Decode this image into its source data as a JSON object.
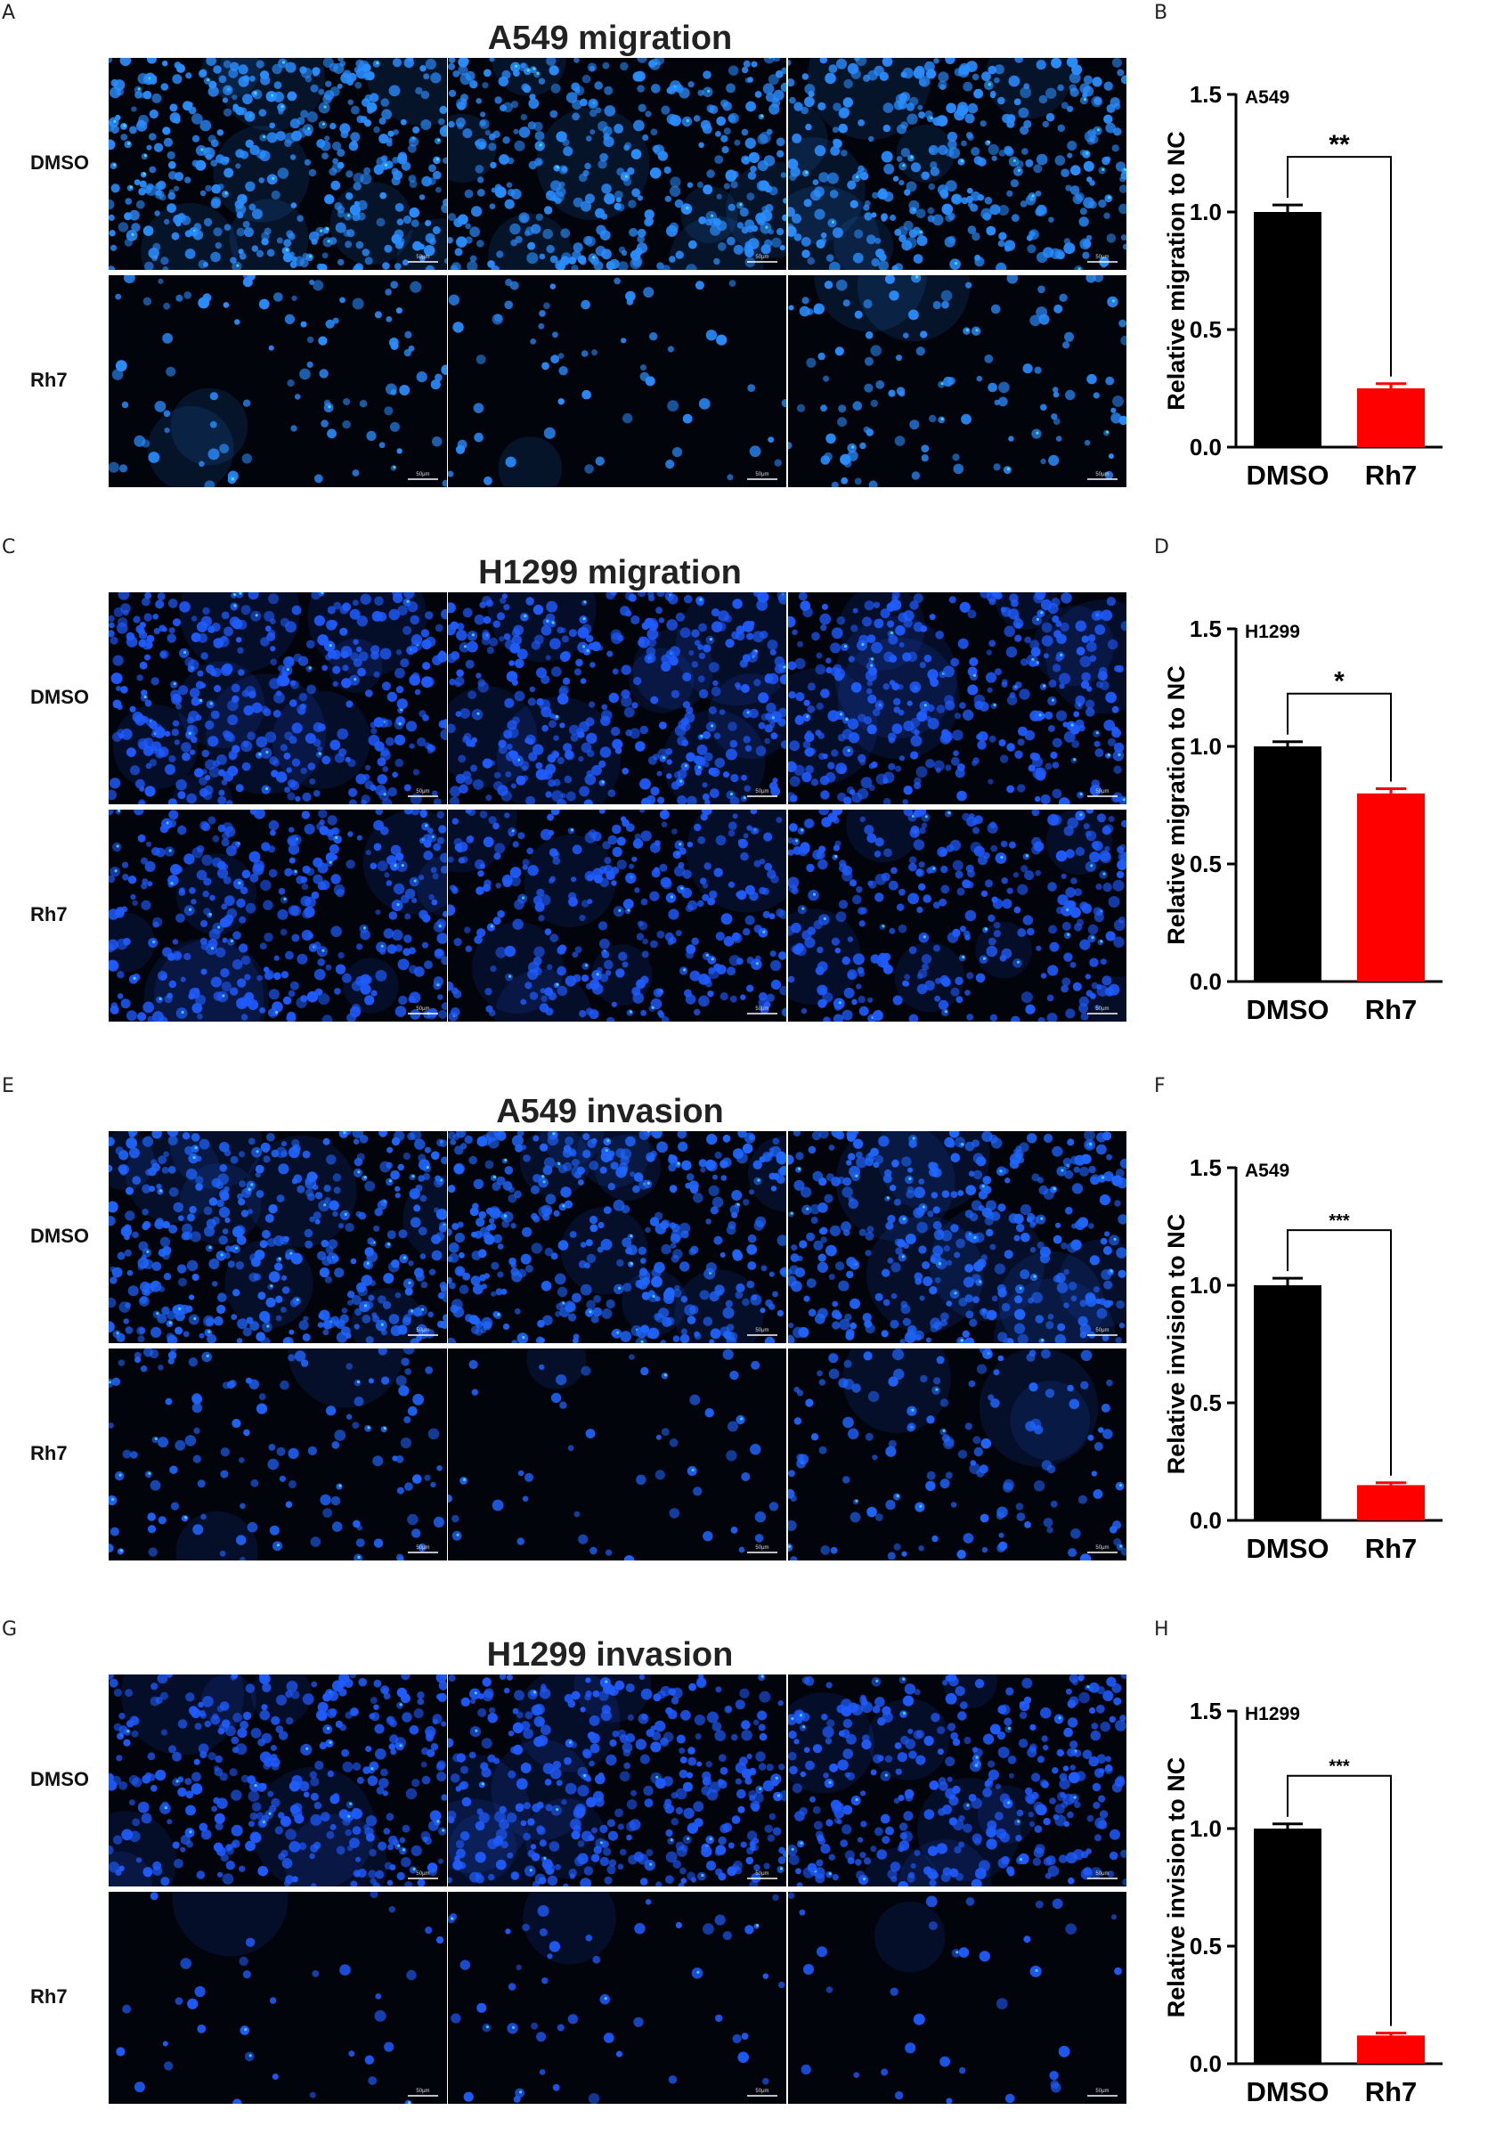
{
  "panels": [
    {
      "letter_left": "A",
      "title": "A549 migration",
      "rows": [
        "DMSO",
        "Rh7"
      ],
      "scale_bar_label": "50μm",
      "image_density": [
        [
          1.0,
          0.9,
          0.85
        ],
        [
          0.22,
          0.14,
          0.28
        ]
      ],
      "image_tone": "#2a8dff",
      "letter_right": "B",
      "chart": {
        "cell_line": "A549",
        "ylabel": "Relative migration to  NC",
        "significance": "**"
      }
    },
    {
      "letter_left": "C",
      "title": "H1299 migration",
      "rows": [
        "DMSO",
        "Rh7"
      ],
      "scale_bar_label": "50μm",
      "image_density": [
        [
          0.95,
          0.95,
          0.85
        ],
        [
          0.85,
          0.75,
          0.78
        ]
      ],
      "image_tone": "#1f5cff",
      "letter_right": "D",
      "chart": {
        "cell_line": "H1299",
        "ylabel": "Relative migration to  NC",
        "significance": "*"
      }
    },
    {
      "letter_left": "E",
      "title": "A549 invasion",
      "rows": [
        "DMSO",
        "Rh7"
      ],
      "scale_bar_label": "50μm",
      "image_density": [
        [
          1.0,
          0.95,
          0.9
        ],
        [
          0.3,
          0.12,
          0.32
        ]
      ],
      "image_tone": "#1f66ff",
      "letter_right": "F",
      "chart": {
        "cell_line": "A549",
        "ylabel": "Relative invision to  NC",
        "significance": "***"
      }
    },
    {
      "letter_left": "G",
      "title": "H1299 invasion",
      "rows": [
        "DMSO",
        "Rh7"
      ],
      "scale_bar_label": "50μm",
      "image_density": [
        [
          0.85,
          0.9,
          0.85
        ],
        [
          0.08,
          0.12,
          0.08
        ]
      ],
      "image_tone": "#1f5cff",
      "letter_right": "H",
      "chart": {
        "cell_line": "H1299",
        "ylabel": "Relative invision to  NC",
        "significance": "***"
      }
    }
  ],
  "chart_data": [
    {
      "type": "bar",
      "categories": [
        "DMSO",
        "Rh7"
      ],
      "values": [
        1.0,
        0.25
      ],
      "errors": [
        0.03,
        0.02
      ],
      "colors": [
        "#000000",
        "#ff0000"
      ],
      "ylabel": "Relative migration to  NC",
      "ylim": [
        0,
        1.5
      ],
      "yticks": [
        "0.0",
        "0.5",
        "1.0",
        "1.5"
      ],
      "annotation": "A549",
      "significance": "**"
    },
    {
      "type": "bar",
      "categories": [
        "DMSO",
        "Rh7"
      ],
      "values": [
        1.0,
        0.8
      ],
      "errors": [
        0.02,
        0.02
      ],
      "colors": [
        "#000000",
        "#ff0000"
      ],
      "ylabel": "Relative migration to  NC",
      "ylim": [
        0,
        1.5
      ],
      "yticks": [
        "0.0",
        "0.5",
        "1.0",
        "1.5"
      ],
      "annotation": "H1299",
      "significance": "*"
    },
    {
      "type": "bar",
      "categories": [
        "DMSO",
        "Rh7"
      ],
      "values": [
        1.0,
        0.15
      ],
      "errors": [
        0.03,
        0.01
      ],
      "colors": [
        "#000000",
        "#ff0000"
      ],
      "ylabel": "Relative invision to  NC",
      "ylim": [
        0,
        1.5
      ],
      "yticks": [
        "0.0",
        "0.5",
        "1.0",
        "1.5"
      ],
      "annotation": "A549",
      "significance": "***"
    },
    {
      "type": "bar",
      "categories": [
        "DMSO",
        "Rh7"
      ],
      "values": [
        1.0,
        0.12
      ],
      "errors": [
        0.02,
        0.01
      ],
      "colors": [
        "#000000",
        "#ff0000"
      ],
      "ylabel": "Relative invision to  NC",
      "ylim": [
        0,
        1.5
      ],
      "yticks": [
        "0.0",
        "0.5",
        "1.0",
        "1.5"
      ],
      "annotation": "H1299",
      "significance": "***"
    }
  ]
}
